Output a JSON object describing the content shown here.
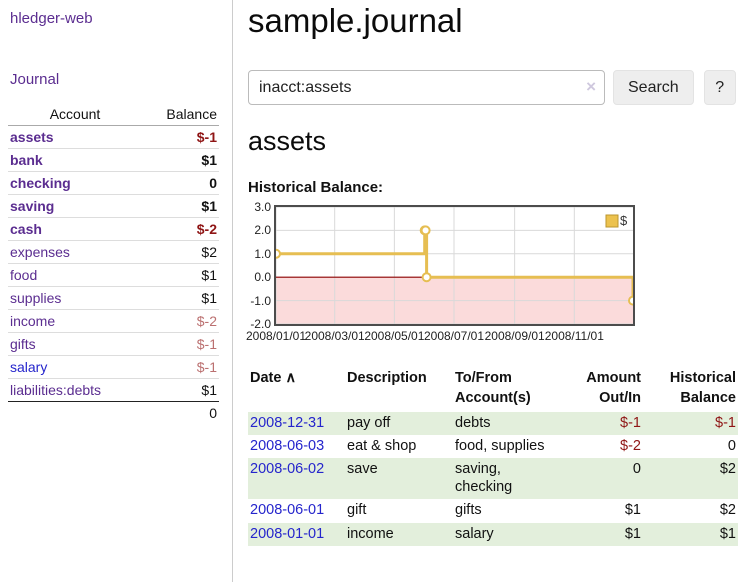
{
  "app": {
    "title": "hledger-web"
  },
  "sidebar": {
    "journal_link": "Journal",
    "accounts_table": {
      "account_header": "Account",
      "balance_header": "Balance",
      "rows": [
        {
          "name": "assets",
          "depth": 1,
          "balance": "$-1",
          "bold": true,
          "balance_tone": "neg"
        },
        {
          "name": "bank",
          "depth": 2,
          "balance": "$1",
          "bold": true,
          "balance_tone": ""
        },
        {
          "name": "checking",
          "depth": 3,
          "balance": "0",
          "bold": true,
          "balance_tone": ""
        },
        {
          "name": "saving",
          "depth": 3,
          "balance": "$1",
          "bold": true,
          "balance_tone": ""
        },
        {
          "name": "cash",
          "depth": 2,
          "balance": "$-2",
          "bold": true,
          "balance_tone": "neg"
        },
        {
          "name": "expenses",
          "depth": 1,
          "balance": "$2",
          "bold": false,
          "balance_tone": ""
        },
        {
          "name": "food",
          "depth": 2,
          "balance": "$1",
          "bold": false,
          "balance_tone": ""
        },
        {
          "name": "supplies",
          "depth": 2,
          "balance": "$1",
          "bold": false,
          "balance_tone": ""
        },
        {
          "name": "income",
          "depth": 1,
          "balance": "$-2",
          "bold": false,
          "balance_tone": "negsoft"
        },
        {
          "name": "gifts",
          "depth": 2,
          "balance": "$-1",
          "bold": false,
          "balance_tone": "negsoft"
        },
        {
          "name": "salary",
          "depth": 2,
          "balance": "$-1",
          "bold": false,
          "balance_tone": "negsoft",
          "link_blue": true
        },
        {
          "name": "liabilities:debts",
          "depth": 1,
          "balance": "$1",
          "bold": false,
          "balance_tone": ""
        }
      ],
      "total": "0"
    }
  },
  "main": {
    "title": "sample.journal",
    "search": {
      "value": "inacct:assets",
      "clear_icon": "×",
      "button_label": "Search",
      "help_label": "?"
    },
    "account_heading": "assets",
    "chart_label": "Historical Balance:"
  },
  "chart_data": {
    "type": "line",
    "step": true,
    "title": "Historical Balance",
    "series": [
      {
        "name": "$",
        "color": "#e6be52",
        "points": [
          [
            "2008-01-01",
            1
          ],
          [
            "2008-06-01",
            2
          ],
          [
            "2008-06-02",
            2
          ],
          [
            "2008-06-03",
            0
          ],
          [
            "2008-12-31",
            -1
          ]
        ]
      }
    ],
    "x_ticks": [
      "2008/01/01",
      "2008/03/01",
      "2008/05/01",
      "2008/07/01",
      "2008/09/01",
      "2008/11/01"
    ],
    "y_ticks": [
      3.0,
      2.0,
      1.0,
      0.0,
      -1.0,
      -2.0
    ],
    "xlim": [
      "2008-01-01",
      "2008-12-31"
    ],
    "ylim": [
      -2,
      3
    ],
    "grid": true,
    "gridline_color": "#d9d9d9",
    "negative_region_color": "#fbdbdb",
    "zero_line_color": "#8b0000",
    "legend": {
      "label": "$",
      "swatch_color": "#ecc24e",
      "swatch_border": "#bb962d",
      "position": "top-right"
    }
  },
  "register": {
    "headers": [
      "Date",
      "Description",
      "To/From Account(s)",
      "Amount Out/In",
      "Historical Balance"
    ],
    "sort_indicator": "∧",
    "rows": [
      {
        "date": "2008-12-31",
        "description": "pay off",
        "accounts": "debts",
        "amount": "$-1",
        "amount_negative": true,
        "balance": "$-1",
        "balance_negative": true
      },
      {
        "date": "2008-06-03",
        "description": "eat & shop",
        "accounts": "food, supplies",
        "amount": "$-2",
        "amount_negative": true,
        "balance": "0",
        "balance_negative": false
      },
      {
        "date": "2008-06-02",
        "description": "save",
        "accounts": "saving, checking",
        "amount": "0",
        "amount_negative": false,
        "balance": "$2",
        "balance_negative": false
      },
      {
        "date": "2008-06-01",
        "description": "gift",
        "accounts": "gifts",
        "amount": "$1",
        "amount_negative": false,
        "balance": "$2",
        "balance_negative": false
      },
      {
        "date": "2008-01-01",
        "description": "income",
        "accounts": "salary",
        "amount": "$1",
        "amount_negative": false,
        "balance": "$1",
        "balance_negative": false
      }
    ]
  }
}
